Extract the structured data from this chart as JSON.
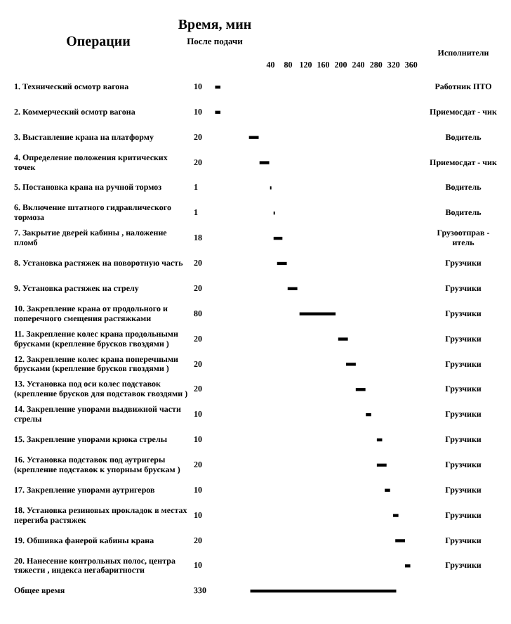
{
  "chart_data": {
    "type": "bar",
    "orientation": "horizontal",
    "title": "Время, мин",
    "subtitle": "После подачи",
    "ylabel": "Операции",
    "categories": [
      "1. Технический осмотр вагона",
      "2. Коммерческий осмотр вагона",
      "3. Выставление крана на платформу",
      "4. Определение положения критических точек",
      "5. Постановка крана на ручной тормоз",
      "6. Включение штатного гидравлического тормоза",
      "7. Закрытие дверей кабины , наложение пломб",
      "8. Установка растяжек на поворотную часть",
      "9. Установка растяжек на стрелу",
      "10. Закрепление крана от продольного и поперечного смещения растяжками",
      "11. Закрепление колес крана продольными брусками (крепление брусков гвоздями )",
      "12. Закрепление колес крана поперечными брусками (крепление брусков гвоздями )",
      "13. Установка под оси колес подставок (крепление брусков для подставок гвоздями )",
      "14. Закрепление упорами выдвижной части стрелы",
      "15. Закрепление упорами крюка стрелы",
      "16. Установка подставок под аутригеры (крепление подставок к упорным брускам )",
      "17. Закрепление упорами аутригеров",
      "18. Установка резиновых прокладок в местах перегиба растяжек",
      "19. Обшивка фанерой кабины крана",
      "20. Нанесение контрольных полос, центра тяжести , индекса негабаритности",
      "Общее время"
    ],
    "values": [
      10,
      10,
      20,
      20,
      1,
      1,
      18,
      20,
      20,
      80,
      20,
      20,
      20,
      10,
      10,
      20,
      10,
      10,
      20,
      10,
      330
    ],
    "base": [
      -85,
      -85,
      -8,
      16,
      40,
      48,
      48,
      56,
      80,
      107,
      195,
      213,
      235,
      258,
      283,
      283,
      301,
      320,
      325,
      347,
      -5
    ],
    "color": "#000000",
    "xlim": [
      -90,
      370
    ],
    "xticks": [
      40,
      80,
      120,
      160,
      200,
      240,
      280,
      320,
      360
    ],
    "grid": false,
    "legend": false,
    "annotations": [
      "Исполнители",
      "Работник ПТО",
      "Приемосдат - чик",
      "Водитель",
      "Приемосдат - чик",
      "Водитель",
      "Водитель",
      "Грузоотправ - итель",
      "Грузчики",
      "Грузчики",
      "Грузчики",
      "Грузчики",
      "Грузчики",
      "Грузчики",
      "Грузчики",
      "Грузчики",
      "Грузчики",
      "Грузчики",
      "Грузчики",
      "Грузчики",
      "Грузчики",
      "10",
      "10",
      "20",
      "20",
      "1",
      "1",
      "18",
      "20",
      "20",
      "80",
      "20",
      "20",
      "20",
      "10",
      "10",
      "20",
      "10",
      "10",
      "20",
      "10",
      "330"
    ]
  }
}
